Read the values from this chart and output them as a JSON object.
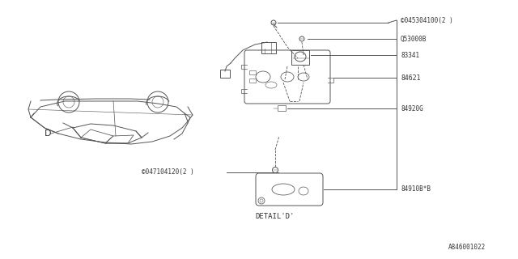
{
  "bg_color": "#ffffff",
  "line_color": "#555555",
  "text_color": "#333333",
  "fig_width": 6.4,
  "fig_height": 3.2,
  "dpi": 100,
  "title": "",
  "labels": {
    "s1": "©045304100(2 )",
    "s2": "Q53000B",
    "s3": "83341",
    "s4": "84621",
    "s5": "84920G",
    "s6": "84910B*B",
    "s7": "©047104120(2 )",
    "s8": "D",
    "s9": "DETAIL'D'",
    "s10": "A846001022"
  },
  "font_size": 6.5,
  "small_font": 5.5,
  "detail_font": 7.0
}
